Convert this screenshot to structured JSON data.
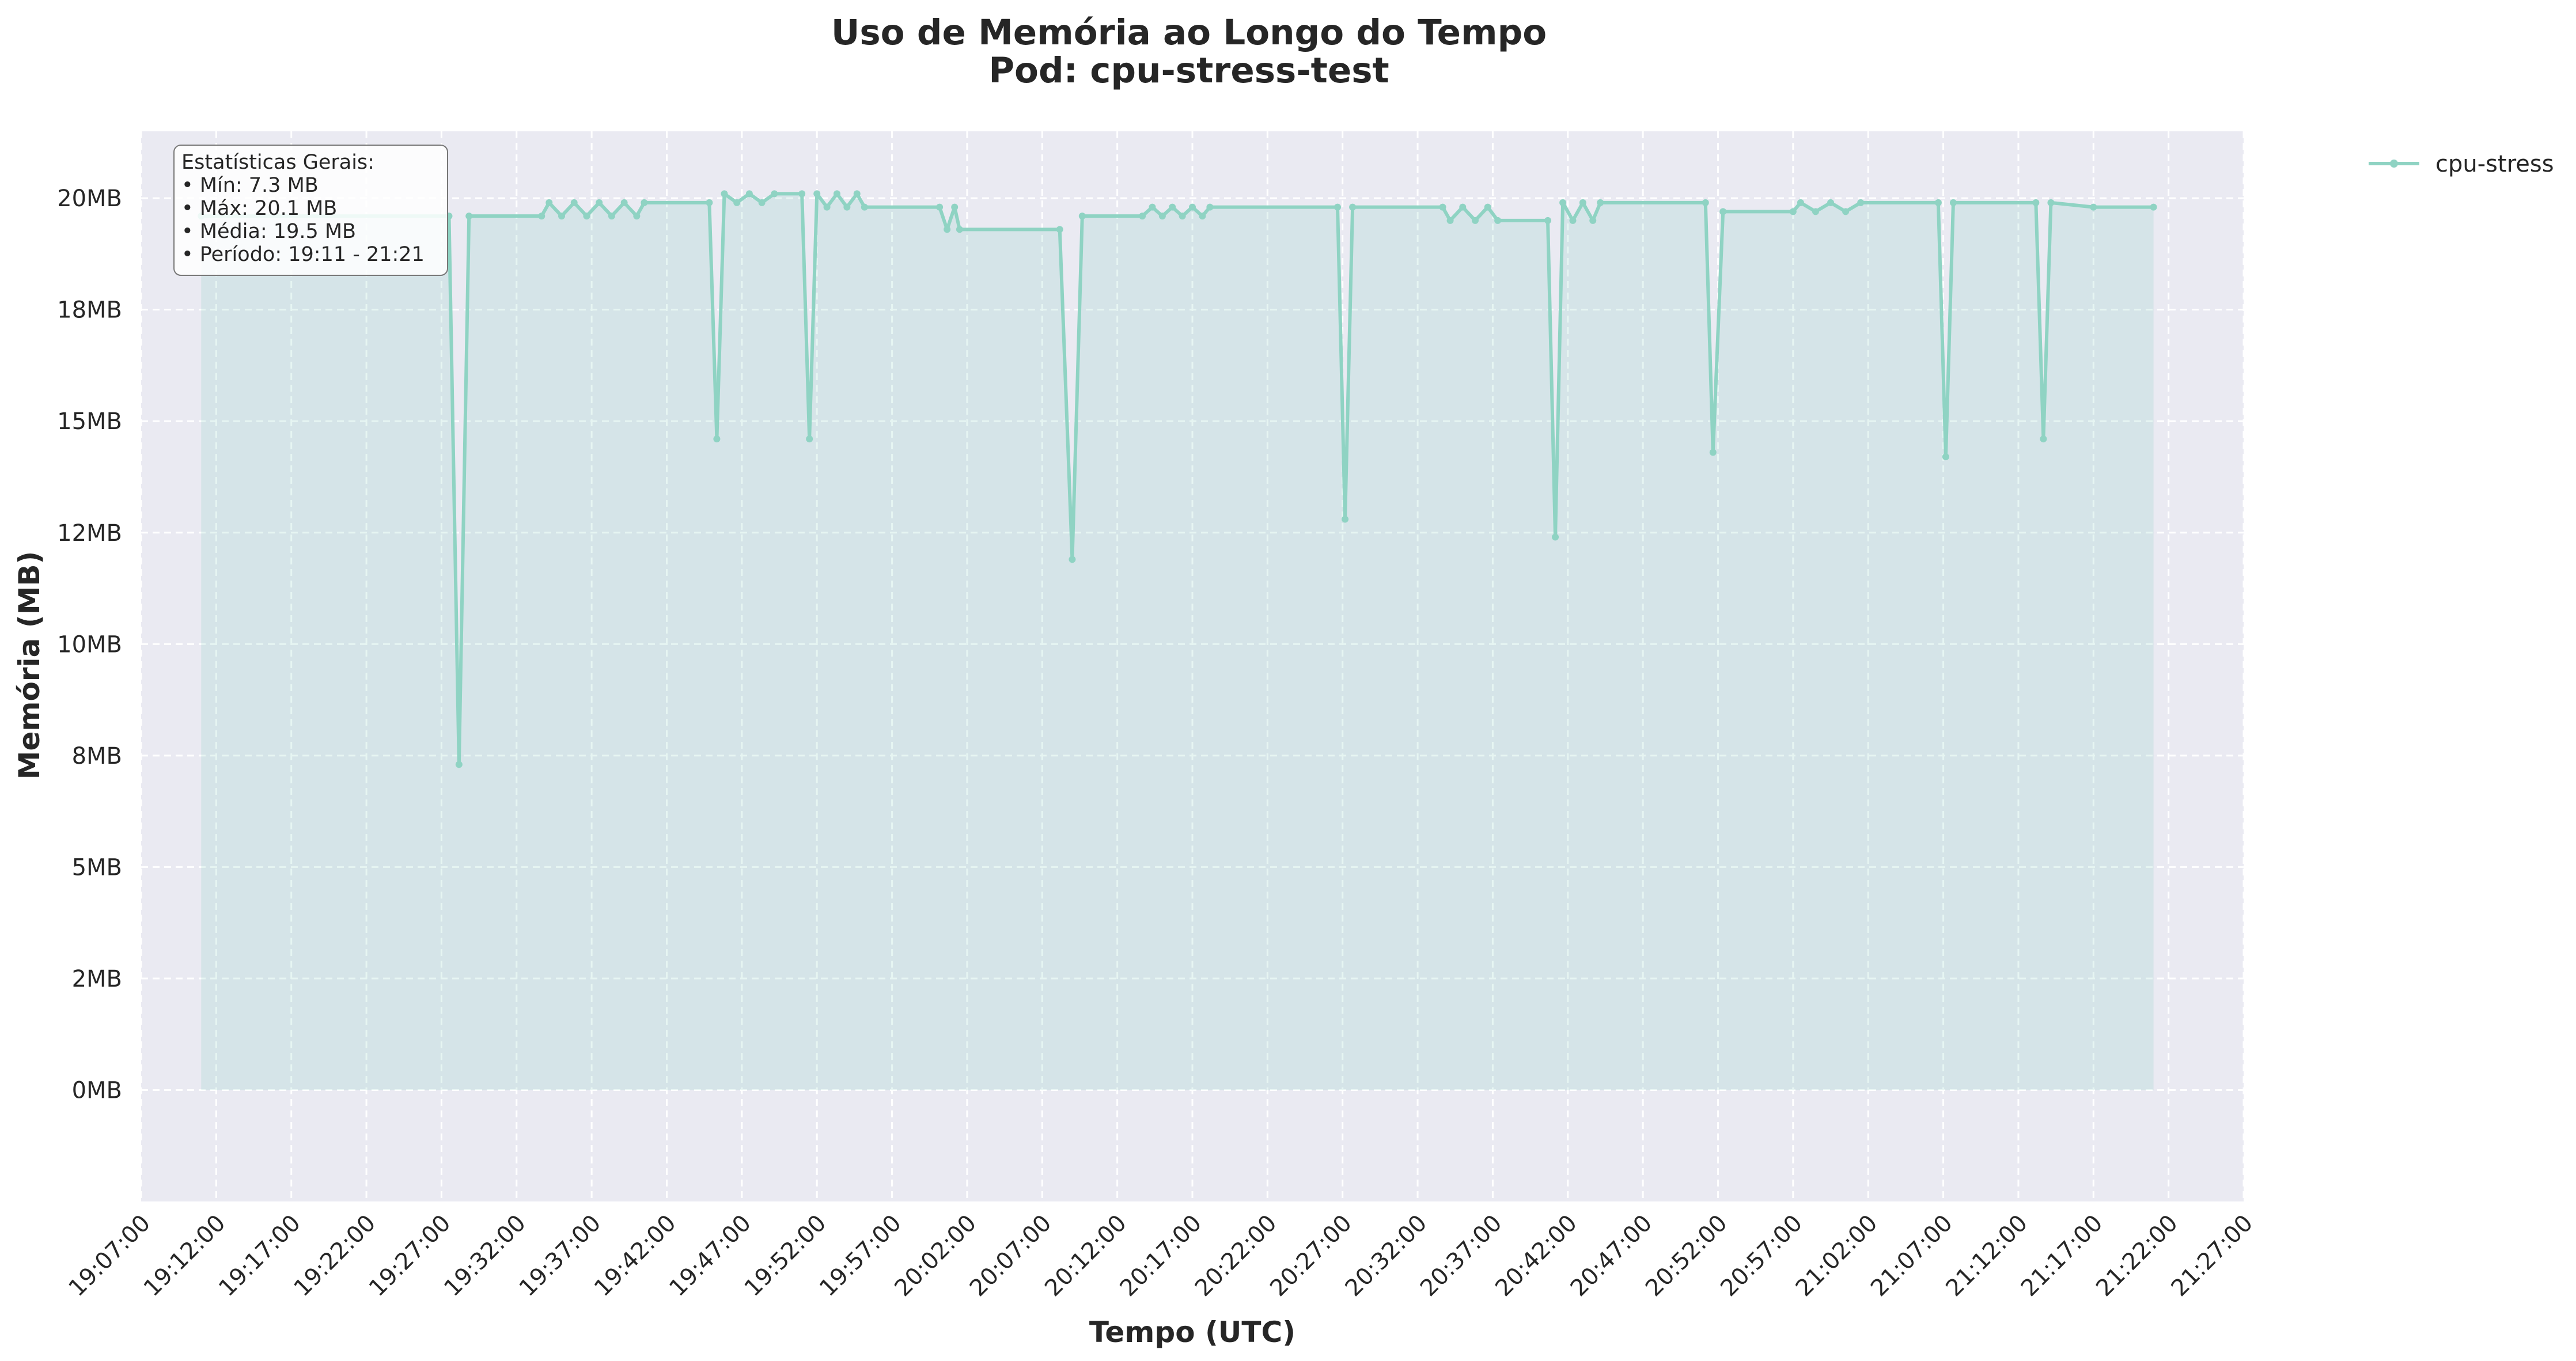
{
  "chart_data": {
    "type": "line",
    "title": "Uso de Memória ao Longo do Tempo",
    "subtitle": "Pod: cpu-stress-test",
    "xlabel": "Tempo (UTC)",
    "ylabel": "Memória (MB)",
    "xlim": [
      "19:07:00",
      "21:27:00"
    ],
    "ylim": [
      -2.5,
      21.5
    ],
    "x_ticks": [
      "19:07:00",
      "19:12:00",
      "19:17:00",
      "19:22:00",
      "19:27:00",
      "19:32:00",
      "19:37:00",
      "19:42:00",
      "19:47:00",
      "19:52:00",
      "19:57:00",
      "20:02:00",
      "20:07:00",
      "20:12:00",
      "20:17:00",
      "20:22:00",
      "20:27:00",
      "20:32:00",
      "20:37:00",
      "20:42:00",
      "20:47:00",
      "20:52:00",
      "20:57:00",
      "21:02:00",
      "21:07:00",
      "21:12:00",
      "21:17:00",
      "21:22:00",
      "21:27:00"
    ],
    "y_ticks": [
      {
        "value": 0,
        "label": "0MB"
      },
      {
        "value": 2.5,
        "label": "2MB"
      },
      {
        "value": 5,
        "label": "5MB"
      },
      {
        "value": 7.5,
        "label": "8MB"
      },
      {
        "value": 10,
        "label": "10MB"
      },
      {
        "value": 12.5,
        "label": "12MB"
      },
      {
        "value": 15,
        "label": "15MB"
      },
      {
        "value": 17.5,
        "label": "18MB"
      },
      {
        "value": 20,
        "label": "20MB"
      }
    ],
    "grid": true,
    "legend_position": "outside-top-right",
    "color": "#8fd3c3",
    "series": [
      {
        "name": "cpu-stress",
        "points": [
          [
            "19:11:00",
            19.6
          ],
          [
            "19:27:30",
            19.6
          ],
          [
            "19:28:10",
            7.3
          ],
          [
            "19:28:50",
            19.6
          ],
          [
            "19:33:40",
            19.6
          ],
          [
            "19:34:10",
            19.9
          ],
          [
            "19:35:00",
            19.6
          ],
          [
            "19:35:50",
            19.9
          ],
          [
            "19:36:40",
            19.6
          ],
          [
            "19:37:30",
            19.9
          ],
          [
            "19:38:20",
            19.6
          ],
          [
            "19:39:10",
            19.9
          ],
          [
            "19:40:00",
            19.6
          ],
          [
            "19:40:30",
            19.9
          ],
          [
            "19:44:50",
            19.9
          ],
          [
            "19:45:20",
            14.6
          ],
          [
            "19:45:50",
            20.1
          ],
          [
            "19:46:40",
            19.9
          ],
          [
            "19:47:30",
            20.1
          ],
          [
            "19:48:20",
            19.9
          ],
          [
            "19:49:10",
            20.1
          ],
          [
            "19:51:00",
            20.1
          ],
          [
            "19:51:30",
            14.6
          ],
          [
            "19:52:00",
            20.1
          ],
          [
            "19:52:40",
            19.8
          ],
          [
            "19:53:20",
            20.1
          ],
          [
            "19:54:00",
            19.8
          ],
          [
            "19:54:40",
            20.1
          ],
          [
            "19:55:10",
            19.8
          ],
          [
            "20:00:10",
            19.8
          ],
          [
            "20:00:40",
            19.3
          ],
          [
            "20:01:10",
            19.8
          ],
          [
            "20:01:30",
            19.3
          ],
          [
            "20:08:10",
            19.3
          ],
          [
            "20:09:00",
            11.9
          ],
          [
            "20:09:40",
            19.6
          ],
          [
            "20:13:40",
            19.6
          ],
          [
            "20:14:20",
            19.8
          ],
          [
            "20:15:00",
            19.6
          ],
          [
            "20:15:40",
            19.8
          ],
          [
            "20:16:20",
            19.6
          ],
          [
            "20:17:00",
            19.8
          ],
          [
            "20:17:40",
            19.6
          ],
          [
            "20:18:10",
            19.8
          ],
          [
            "20:26:40",
            19.8
          ],
          [
            "20:27:10",
            12.8
          ],
          [
            "20:27:40",
            19.8
          ],
          [
            "20:33:40",
            19.8
          ],
          [
            "20:34:10",
            19.5
          ],
          [
            "20:35:00",
            19.8
          ],
          [
            "20:35:50",
            19.5
          ],
          [
            "20:36:40",
            19.8
          ],
          [
            "20:37:20",
            19.5
          ],
          [
            "20:40:40",
            19.5
          ],
          [
            "20:41:10",
            12.4
          ],
          [
            "20:41:40",
            19.9
          ],
          [
            "20:42:20",
            19.5
          ],
          [
            "20:43:00",
            19.9
          ],
          [
            "20:43:40",
            19.5
          ],
          [
            "20:44:10",
            19.9
          ],
          [
            "20:51:10",
            19.9
          ],
          [
            "20:51:40",
            14.3
          ],
          [
            "20:52:20",
            19.7
          ],
          [
            "20:57:00",
            19.7
          ],
          [
            "20:57:30",
            19.9
          ],
          [
            "20:58:30",
            19.7
          ],
          [
            "20:59:30",
            19.9
          ],
          [
            "21:00:30",
            19.7
          ],
          [
            "21:01:30",
            19.9
          ],
          [
            "21:06:40",
            19.9
          ],
          [
            "21:07:10",
            14.2
          ],
          [
            "21:07:40",
            19.9
          ],
          [
            "21:13:10",
            19.9
          ],
          [
            "21:13:40",
            14.6
          ],
          [
            "21:14:10",
            19.9
          ],
          [
            "21:17:00",
            19.8
          ],
          [
            "21:21:00",
            19.8
          ]
        ]
      }
    ]
  },
  "stats_box": {
    "heading": "Estatísticas Gerais:",
    "lines": [
      "• Mín: 7.3 MB",
      "• Máx: 20.1 MB",
      "• Média: 19.5 MB",
      "• Período: 19:11 - 21:21"
    ]
  }
}
